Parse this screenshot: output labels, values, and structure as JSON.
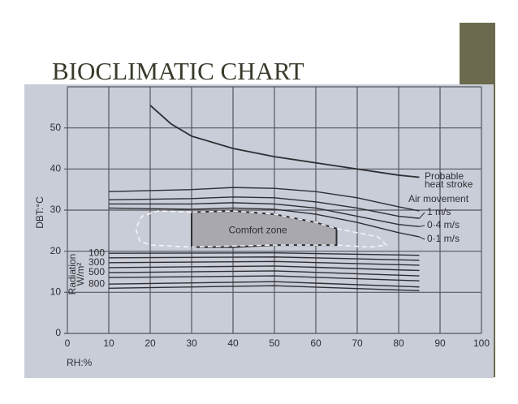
{
  "chart_data": {
    "type": "line",
    "title": "BIOCLIMATIC CHART",
    "x_label": "RH:%",
    "y_label": "DBT:°C",
    "xlim": [
      0,
      100
    ],
    "ylim": [
      0,
      60
    ],
    "xticks": [
      0,
      10,
      20,
      30,
      40,
      50,
      60,
      70,
      80,
      90,
      100
    ],
    "yticks": [
      0,
      10,
      20,
      30,
      40,
      50
    ],
    "grid": true,
    "color": "#2e2e33",
    "series": [
      {
        "name": [
          "Probable",
          "heat stroke"
        ],
        "x": [
          20,
          25,
          30,
          40,
          50,
          60,
          70,
          80,
          85
        ],
        "values": [
          55.5,
          51,
          48,
          45,
          43,
          41.5,
          40,
          38.5,
          38
        ]
      },
      {
        "name": null,
        "x": [
          10,
          30,
          40,
          50,
          60,
          70,
          80,
          85
        ],
        "values": [
          34.5,
          35,
          35.5,
          35.3,
          34.5,
          33,
          30.8,
          29.8
        ]
      },
      {
        "name": "1 m/s",
        "x": [
          10,
          30,
          40,
          50,
          60,
          70,
          80,
          85
        ],
        "values": [
          32.5,
          32.8,
          33.2,
          33,
          32,
          30.5,
          28.5,
          28
        ]
      },
      {
        "name": "0·4 m/s",
        "x": [
          10,
          30,
          40,
          50,
          60,
          70,
          80,
          85
        ],
        "values": [
          31.5,
          31.5,
          31.8,
          31.5,
          30.5,
          28.5,
          26.5,
          26
        ]
      },
      {
        "name": "0·1 m/s",
        "x": [
          10,
          30,
          40,
          50,
          60,
          70,
          80,
          85
        ],
        "values": [
          30.5,
          30.2,
          30.5,
          30.2,
          29,
          27,
          24.5,
          23.5
        ]
      }
    ],
    "air_movement_label": "Air movement",
    "comfort_zone": {
      "label": "Comfort zone",
      "x": [
        30,
        40,
        50,
        60,
        65
      ],
      "upper": [
        29.5,
        29.8,
        29,
        27,
        25.5
      ],
      "lower": [
        21,
        21,
        21.5,
        21.5,
        21.5
      ],
      "outline_x": [
        30,
        22,
        18,
        16.5,
        17.5,
        20,
        30,
        50,
        65,
        73,
        77,
        75,
        70,
        65,
        60,
        50,
        40,
        30
      ],
      "outline_y": [
        29.5,
        29.8,
        28.5,
        25.5,
        22.5,
        21.5,
        21,
        21.5,
        21.5,
        21,
        21.5,
        23.5,
        24.5,
        25.5,
        27,
        29,
        29.8,
        29.5
      ]
    },
    "radiation": {
      "label": [
        "Radiation",
        "W/m²"
      ],
      "x": [
        10,
        50,
        85
      ],
      "lines": [
        {
          "name": "100",
          "values": [
            19.5,
            19.6,
            19
          ]
        },
        {
          "name": null,
          "values": [
            18.4,
            18.6,
            17.8
          ]
        },
        {
          "name": "300",
          "values": [
            17.2,
            17.5,
            16.6
          ]
        },
        {
          "name": null,
          "values": [
            16,
            16.4,
            15.3
          ]
        },
        {
          "name": "500",
          "values": [
            14.8,
            15.2,
            14
          ]
        },
        {
          "name": null,
          "values": [
            13.6,
            14,
            12.8
          ]
        },
        {
          "name": "800",
          "values": [
            12,
            12.6,
            11.3
          ]
        },
        {
          "name": null,
          "values": [
            11,
            11.6,
            10.4
          ]
        }
      ]
    }
  }
}
